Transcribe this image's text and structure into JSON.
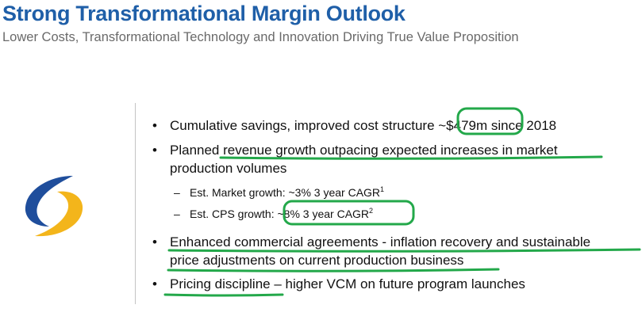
{
  "slide": {
    "title": "Strong Transformational Margin Outlook",
    "subtitle": "Lower Costs, Transformational Technology and Innovation Driving True Value Proposition"
  },
  "logo": {
    "icon": "cs-swoosh-logo-icon",
    "colors": {
      "blue": "#1f4e9c",
      "gold": "#f3b51b"
    }
  },
  "bullets": [
    {
      "text_a": "Cumulative savings, improved cost structure ",
      "highlight": "~$479m",
      "text_b": " since 2018"
    },
    {
      "line1": "Planned revenue growth outpacing expected increases in market",
      "line2": "production volumes"
    },
    {
      "line1": "Enhanced commercial agreements - inflation recovery and sustainable",
      "line2": "price adjustments on current production business"
    },
    {
      "text_a": "Pricing discipline",
      "text_b": " – higher VCM on future program launches"
    }
  ],
  "sub_bullets": [
    {
      "text": "Est. Market growth: ~3% 3 year CAGR",
      "note": "1"
    },
    {
      "prefix": "Est. CPS growth: ",
      "highlight": "~8% 3 year CAGR",
      "note": "2"
    }
  ],
  "annotation_color": "#23a84a"
}
